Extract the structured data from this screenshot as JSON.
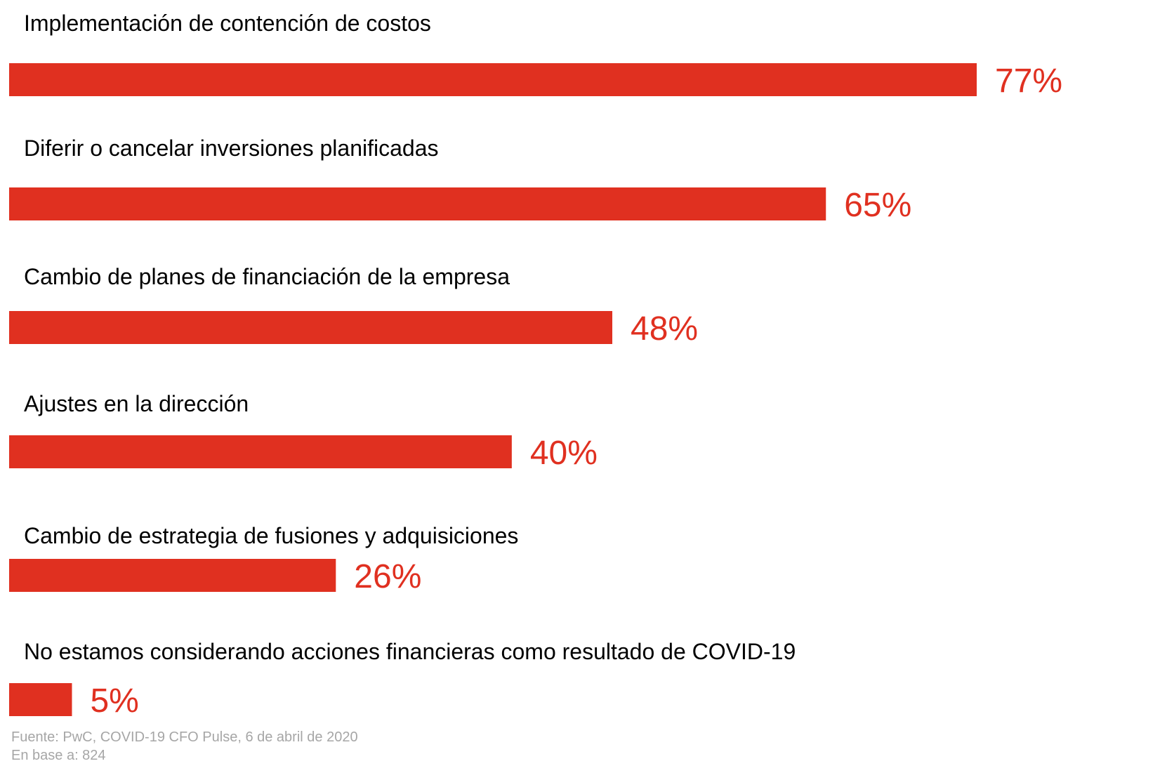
{
  "chart_data": {
    "type": "bar",
    "orientation": "horizontal",
    "categories": [
      "Implementación de contención de costos",
      "Diferir o cancelar inversiones planificadas",
      "Cambio de planes de financiación de la empresa",
      "Ajustes en la dirección",
      "Cambio de estrategia de fusiones y adquisiciones",
      "No estamos considerando acciones financieras como resultado de COVID-19"
    ],
    "values": [
      77,
      65,
      48,
      40,
      26,
      5
    ],
    "value_labels": [
      "77%",
      "65%",
      "48%",
      "40%",
      "26%",
      "5%"
    ],
    "unit": "%",
    "xlim": [
      0,
      100
    ],
    "grid": false,
    "legend": "none",
    "bar_color": "#e03020",
    "label_color": "#e03020"
  },
  "footer": {
    "source": "Fuente: PwC, COVID-19 CFO Pulse, 6 de abril de 2020",
    "base": "En base a: 824"
  }
}
